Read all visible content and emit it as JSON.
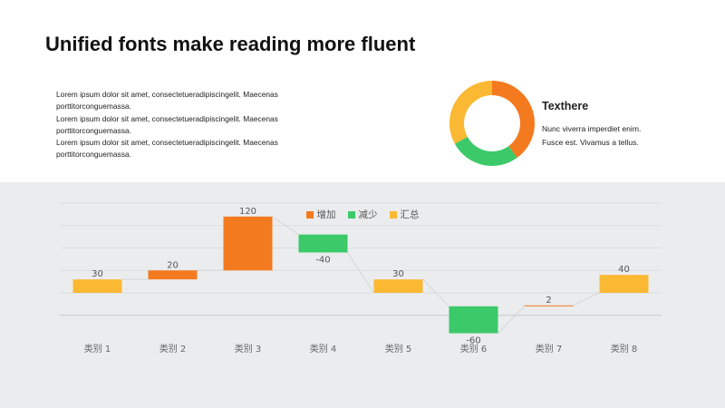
{
  "slide": {
    "title": "Unified fonts make reading more fluent",
    "paragraphs": [
      "Lorem ipsum dolor sit amet, consectetueradipiscingelit. Maecenas porttitorconguemassa.",
      "Lorem ipsum dolor sit amet, consectetueradipiscingelit. Maecenas porttitorconguemassa.",
      "Lorem ipsum dolor sit amet, consectetueradipiscingelit. Maecenas porttitorconguemassa."
    ],
    "side_title": "Texthere",
    "side_lines": [
      "Nunc viverra imperdiet enim.",
      "Fusce est. Vivamus a tellus."
    ]
  },
  "donut_colors": [
    "#f47a20",
    "#3cc96a",
    "#fbb832"
  ],
  "donut_shares": [
    0.4,
    0.27,
    0.33
  ],
  "colors": {
    "increase": "#f47a20",
    "decrease": "#3cc96a",
    "total": "#fbb832",
    "panel_bg": "#ebecee"
  },
  "chart_data": {
    "type": "bar",
    "subtype": "waterfall",
    "categories": [
      "类别 1",
      "类别 2",
      "类别 3",
      "类别 4",
      "类别 5",
      "类别 6",
      "类别 7",
      "类别 8"
    ],
    "legend": [
      "增加",
      "减少",
      "汇总"
    ],
    "legend_position": "top-center",
    "values": [
      30,
      20,
      120,
      -40,
      30,
      -60,
      2,
      40
    ],
    "labels": [
      "30",
      "20",
      "120",
      "-40",
      "30",
      "-60",
      "2",
      "40"
    ],
    "kinds": [
      "total",
      "increase",
      "increase",
      "decrease",
      "total",
      "decrease",
      "increase",
      "total"
    ],
    "bases": [
      0,
      30,
      50,
      130,
      0,
      -30,
      -30,
      0
    ],
    "ylim": [
      -50,
      200
    ],
    "grid": true
  }
}
